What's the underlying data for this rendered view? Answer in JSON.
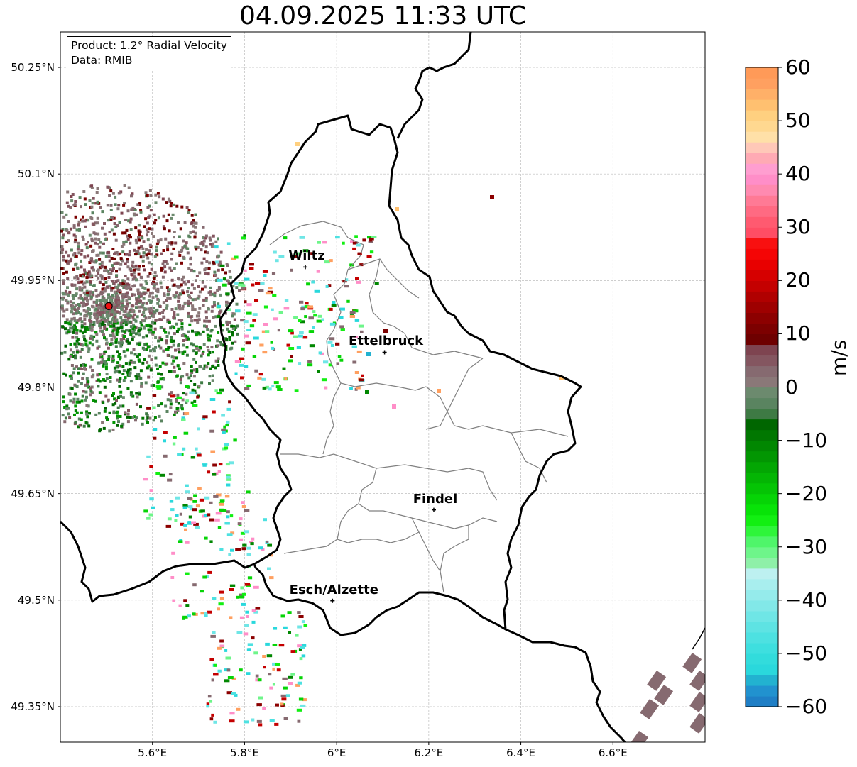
{
  "title": "04.09.2025 11:33 UTC",
  "info": {
    "product": "Product: 1.2° Radial Velocity",
    "source": "Data: RMIB"
  },
  "map": {
    "extent": {
      "lon_min": 5.4,
      "lon_max": 6.8,
      "lat_min": 49.3,
      "lat_max": 50.3
    },
    "lat_ticks": [
      {
        "value": 50.25,
        "label": "50.25°N"
      },
      {
        "value": 50.1,
        "label": "50.1°N"
      },
      {
        "value": 49.95,
        "label": "49.95°N"
      },
      {
        "value": 49.8,
        "label": "49.8°N"
      },
      {
        "value": 49.65,
        "label": "49.65°N"
      },
      {
        "value": 49.5,
        "label": "49.5°N"
      },
      {
        "value": 49.35,
        "label": "49.35°N"
      }
    ],
    "lon_ticks": [
      {
        "value": 5.6,
        "label": "5.6°E"
      },
      {
        "value": 5.8,
        "label": "5.8°E"
      },
      {
        "value": 6.0,
        "label": "6°E"
      },
      {
        "value": 6.2,
        "label": "6.2°E"
      },
      {
        "value": 6.4,
        "label": "6.4°E"
      },
      {
        "value": 6.6,
        "label": "6.6°E"
      }
    ],
    "radar_site": {
      "lon": 5.505,
      "lat": 49.914
    },
    "cities": [
      {
        "name": "Wiltz",
        "lon": 5.932,
        "lat": 49.969
      },
      {
        "name": "Ettelbruck",
        "lon": 6.104,
        "lat": 49.849
      },
      {
        "name": "Findel",
        "lon": 6.211,
        "lat": 49.627
      },
      {
        "name": "Esch/Alzette",
        "lon": 5.991,
        "lat": 49.499
      }
    ],
    "gridlines": true,
    "border_color": "#000000",
    "district_color": "#808080"
  },
  "colorbar": {
    "label": "m/s",
    "min": -60,
    "max": 60,
    "ticks": [
      {
        "value": 60,
        "label": "60"
      },
      {
        "value": 50,
        "label": "50"
      },
      {
        "value": 40,
        "label": "40"
      },
      {
        "value": 30,
        "label": "30"
      },
      {
        "value": 20,
        "label": "20"
      },
      {
        "value": 10,
        "label": "10"
      },
      {
        "value": 0,
        "label": "0"
      },
      {
        "value": -10,
        "label": "−10"
      },
      {
        "value": -20,
        "label": "−20"
      },
      {
        "value": -30,
        "label": "−30"
      },
      {
        "value": -40,
        "label": "−40"
      },
      {
        "value": -50,
        "label": "−50"
      },
      {
        "value": -60,
        "label": "−60"
      }
    ],
    "bands": [
      {
        "from": -60,
        "to": -58,
        "color": "#1f7fc6"
      },
      {
        "from": -58,
        "to": -56,
        "color": "#2192cf"
      },
      {
        "from": -56,
        "to": -54,
        "color": "#22b2d0"
      },
      {
        "from": -54,
        "to": -52,
        "color": "#2ad8dc"
      },
      {
        "from": -52,
        "to": -50,
        "color": "#32dcdc"
      },
      {
        "from": -50,
        "to": -48,
        "color": "#3edfdf"
      },
      {
        "from": -48,
        "to": -46,
        "color": "#4de1e1"
      },
      {
        "from": -46,
        "to": -44,
        "color": "#5ee3e3"
      },
      {
        "from": -44,
        "to": -42,
        "color": "#6fe6e6"
      },
      {
        "from": -42,
        "to": -40,
        "color": "#82e8e8"
      },
      {
        "from": -40,
        "to": -38,
        "color": "#95ebeb"
      },
      {
        "from": -38,
        "to": -36,
        "color": "#a8eeee"
      },
      {
        "from": -36,
        "to": -34,
        "color": "#bdf0f0"
      },
      {
        "from": -34,
        "to": -32,
        "color": "#8ef0a8"
      },
      {
        "from": -32,
        "to": -30,
        "color": "#6ef58a"
      },
      {
        "from": -30,
        "to": -28,
        "color": "#4ff56a"
      },
      {
        "from": -28,
        "to": -26,
        "color": "#2ef53a"
      },
      {
        "from": -26,
        "to": -24,
        "color": "#12ef12"
      },
      {
        "from": -24,
        "to": -22,
        "color": "#08e308"
      },
      {
        "from": -22,
        "to": -20,
        "color": "#06d406"
      },
      {
        "from": -20,
        "to": -18,
        "color": "#05c405"
      },
      {
        "from": -18,
        "to": -16,
        "color": "#04b504"
      },
      {
        "from": -16,
        "to": -14,
        "color": "#03a603"
      },
      {
        "from": -14,
        "to": -12,
        "color": "#029602"
      },
      {
        "from": -12,
        "to": -10,
        "color": "#018701"
      },
      {
        "from": -10,
        "to": -8,
        "color": "#017701"
      },
      {
        "from": -8,
        "to": -6,
        "color": "#006600"
      },
      {
        "from": -6,
        "to": -4,
        "color": "#3e7a44"
      },
      {
        "from": -4,
        "to": -2,
        "color": "#5a8460"
      },
      {
        "from": -2,
        "to": 0,
        "color": "#6c8a6e"
      },
      {
        "from": 0,
        "to": 2,
        "color": "#8a7878"
      },
      {
        "from": 2,
        "to": 4,
        "color": "#866a70"
      },
      {
        "from": 4,
        "to": 6,
        "color": "#845660"
      },
      {
        "from": 6,
        "to": 8,
        "color": "#7e4450"
      },
      {
        "from": 8,
        "to": 10,
        "color": "#6e0000"
      },
      {
        "from": 10,
        "to": 12,
        "color": "#7c0000"
      },
      {
        "from": 12,
        "to": 14,
        "color": "#8c0000"
      },
      {
        "from": 14,
        "to": 16,
        "color": "#9e0000"
      },
      {
        "from": 16,
        "to": 18,
        "color": "#b00000"
      },
      {
        "from": 18,
        "to": 20,
        "color": "#c40000"
      },
      {
        "from": 20,
        "to": 22,
        "color": "#d60000"
      },
      {
        "from": 22,
        "to": 24,
        "color": "#e80000"
      },
      {
        "from": 24,
        "to": 26,
        "color": "#f50505"
      },
      {
        "from": 26,
        "to": 28,
        "color": "#f81010"
      },
      {
        "from": 28,
        "to": 30,
        "color": "#ff4d64"
      },
      {
        "from": 30,
        "to": 32,
        "color": "#ff5a70"
      },
      {
        "from": 32,
        "to": 34,
        "color": "#ff6a82"
      },
      {
        "from": 34,
        "to": 36,
        "color": "#ff7a95"
      },
      {
        "from": 36,
        "to": 38,
        "color": "#ff8ab0"
      },
      {
        "from": 38,
        "to": 40,
        "color": "#ff8ec8"
      },
      {
        "from": 40,
        "to": 42,
        "color": "#ff9ed0"
      },
      {
        "from": 42,
        "to": 44,
        "color": "#ffaab4"
      },
      {
        "from": 44,
        "to": 46,
        "color": "#ffc8b8"
      },
      {
        "from": 46,
        "to": 48,
        "color": "#ffe0a8"
      },
      {
        "from": 48,
        "to": 50,
        "color": "#ffd890"
      },
      {
        "from": 50,
        "to": 52,
        "color": "#ffd080"
      },
      {
        "from": 52,
        "to": 54,
        "color": "#ffc070"
      },
      {
        "from": 54,
        "to": 56,
        "color": "#ffb068"
      },
      {
        "from": 56,
        "to": 58,
        "color": "#ffa060"
      },
      {
        "from": 58,
        "to": 60,
        "color": "#ff9a58"
      }
    ]
  }
}
